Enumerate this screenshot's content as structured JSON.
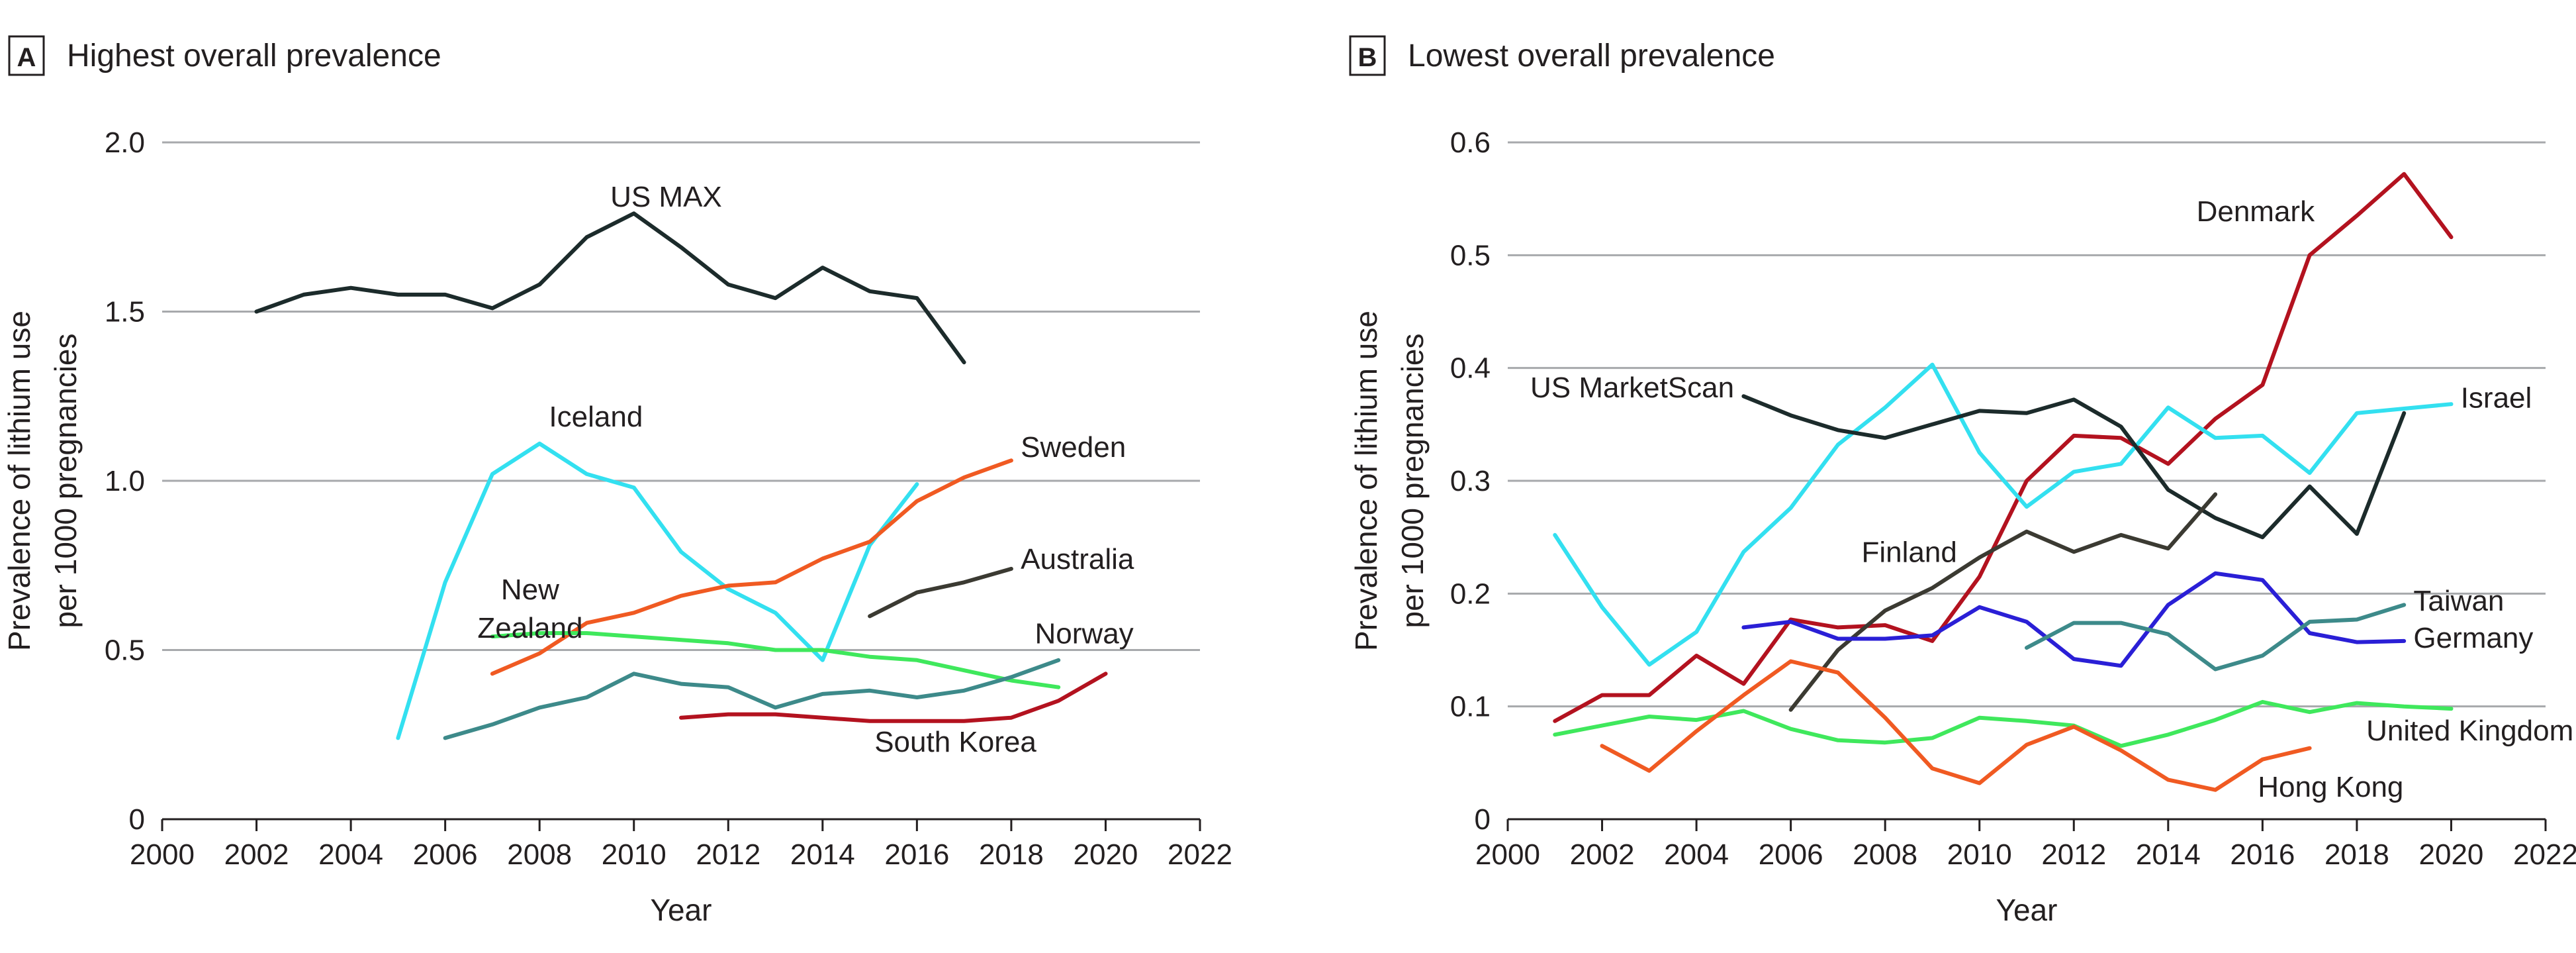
{
  "chart_data": [
    {
      "type": "line",
      "panel_letter": "A",
      "title": "Highest overall prevalence",
      "xlabel": "Year",
      "ylabel_lines": [
        "Prevalence of lithium use",
        "per 1000 pregnancies"
      ],
      "xlim": [
        2000,
        2022
      ],
      "ylim": [
        0,
        2.0
      ],
      "xticks": [
        2000,
        2002,
        2004,
        2006,
        2008,
        2010,
        2012,
        2014,
        2016,
        2018,
        2020,
        2022
      ],
      "yticks": [
        0,
        0.5,
        1.0,
        1.5,
        2.0
      ],
      "ytick_labels": [
        "0",
        "0.5",
        "1.0",
        "1.5",
        "2.0"
      ],
      "grid": "horizontal",
      "series": [
        {
          "name": "US MAX",
          "color": "#1c2b2b",
          "x": [
            2002,
            2003,
            2004,
            2005,
            2006,
            2007,
            2008,
            2009,
            2010,
            2011,
            2012,
            2013,
            2014,
            2015,
            2016,
            2017
          ],
          "y": [
            1.5,
            1.55,
            1.57,
            1.55,
            1.55,
            1.51,
            1.58,
            1.72,
            1.79,
            1.69,
            1.58,
            1.54,
            1.63,
            1.56,
            1.54,
            1.35
          ],
          "label_lines": [
            "US MAX"
          ],
          "label_at": [
            2009.5,
            1.81
          ],
          "label_align": "start"
        },
        {
          "name": "Iceland",
          "color": "#33e0f0",
          "x": [
            2005,
            2006,
            2007,
            2008,
            2009,
            2010,
            2011,
            2012,
            2013,
            2014,
            2015,
            2016
          ],
          "y": [
            0.24,
            0.7,
            1.02,
            1.11,
            1.02,
            0.98,
            0.79,
            0.68,
            0.61,
            0.47,
            0.81,
            0.99
          ],
          "label_lines": [
            "Iceland"
          ],
          "label_at": [
            2008.2,
            1.16
          ],
          "label_align": "start"
        },
        {
          "name": "Sweden",
          "color": "#f05a22",
          "x": [
            2007,
            2008,
            2009,
            2010,
            2011,
            2012,
            2013,
            2014,
            2015,
            2016,
            2017,
            2018
          ],
          "y": [
            0.43,
            0.49,
            0.58,
            0.61,
            0.66,
            0.69,
            0.7,
            0.77,
            0.82,
            0.94,
            1.01,
            1.06
          ],
          "label_lines": [
            "Sweden"
          ],
          "label_at": [
            2018.2,
            1.07
          ],
          "label_align": "start"
        },
        {
          "name": "Australia",
          "color": "#3b3a32",
          "x": [
            2015,
            2016,
            2017,
            2018
          ],
          "y": [
            0.6,
            0.67,
            0.7,
            0.74
          ],
          "label_lines": [
            "Australia"
          ],
          "label_at": [
            2018.2,
            0.74
          ],
          "label_align": "start"
        },
        {
          "name": "New Zealand",
          "color": "#3fe85c",
          "x": [
            2007,
            2008,
            2009,
            2010,
            2011,
            2012,
            2013,
            2014,
            2015,
            2016,
            2017,
            2018,
            2019
          ],
          "y": [
            0.54,
            0.55,
            0.55,
            0.54,
            0.53,
            0.52,
            0.5,
            0.5,
            0.48,
            0.47,
            0.44,
            0.41,
            0.39
          ],
          "label_lines": [
            "New",
            "Zealand"
          ],
          "label_at": [
            2007.8,
            0.65
          ],
          "label_align": "middle"
        },
        {
          "name": "Norway",
          "color": "#3d8a8a",
          "x": [
            2006,
            2007,
            2008,
            2009,
            2010,
            2011,
            2012,
            2013,
            2014,
            2015,
            2016,
            2017,
            2018,
            2019
          ],
          "y": [
            0.24,
            0.28,
            0.33,
            0.36,
            0.43,
            0.4,
            0.39,
            0.33,
            0.37,
            0.38,
            0.36,
            0.38,
            0.42,
            0.47
          ],
          "label_lines": [
            "Norway"
          ],
          "label_at": [
            2018.5,
            0.52
          ],
          "label_align": "start"
        },
        {
          "name": "South Korea",
          "color": "#b3121f",
          "x": [
            2011,
            2012,
            2013,
            2014,
            2015,
            2016,
            2017,
            2018,
            2019,
            2020
          ],
          "y": [
            0.3,
            0.31,
            0.31,
            0.3,
            0.29,
            0.29,
            0.29,
            0.3,
            0.35,
            0.43
          ],
          "label_lines": [
            "South Korea"
          ],
          "label_at": [
            2015.1,
            0.2
          ],
          "label_align": "start"
        }
      ]
    },
    {
      "type": "line",
      "panel_letter": "B",
      "title": "Lowest overall prevalence",
      "xlabel": "Year",
      "ylabel_lines": [
        "Prevalence of lithium use",
        "per 1000 pregnancies"
      ],
      "xlim": [
        2000,
        2022
      ],
      "ylim": [
        0,
        0.6
      ],
      "xticks": [
        2000,
        2002,
        2004,
        2006,
        2008,
        2010,
        2012,
        2014,
        2016,
        2018,
        2020,
        2022
      ],
      "yticks": [
        0,
        0.1,
        0.2,
        0.3,
        0.4,
        0.5,
        0.6
      ],
      "ytick_labels": [
        "0",
        "0.1",
        "0.2",
        "0.3",
        "0.4",
        "0.5",
        "0.6"
      ],
      "grid": "horizontal",
      "series": [
        {
          "name": "Denmark",
          "color": "#b3121f",
          "x": [
            2001,
            2002,
            2003,
            2004,
            2005,
            2006,
            2007,
            2008,
            2009,
            2010,
            2011,
            2012,
            2013,
            2014,
            2015,
            2016,
            2017,
            2018,
            2019,
            2020
          ],
          "y": [
            0.087,
            0.11,
            0.11,
            0.145,
            0.12,
            0.177,
            0.17,
            0.172,
            0.158,
            0.215,
            0.3,
            0.34,
            0.338,
            0.315,
            0.355,
            0.385,
            0.5,
            0.535,
            0.572,
            0.516
          ],
          "label_lines": [
            "Denmark"
          ],
          "label_at": [
            2014.6,
            0.53
          ],
          "label_align": "start"
        },
        {
          "name": "Israel",
          "color": "#33e0f0",
          "x": [
            2001,
            2002,
            2003,
            2004,
            2005,
            2006,
            2007,
            2008,
            2009,
            2010,
            2011,
            2012,
            2013,
            2014,
            2015,
            2016,
            2017,
            2018,
            2019,
            2020
          ],
          "y": [
            0.252,
            0.188,
            0.137,
            0.166,
            0.237,
            0.276,
            0.332,
            0.365,
            0.403,
            0.325,
            0.277,
            0.308,
            0.315,
            0.365,
            0.338,
            0.34,
            0.307,
            0.36,
            0.364,
            0.368
          ],
          "label_lines": [
            "Israel"
          ],
          "label_at": [
            2020.2,
            0.365
          ],
          "label_align": "start"
        },
        {
          "name": "US MarketScan",
          "color": "#1c2b2b",
          "x": [
            2005,
            2006,
            2007,
            2008,
            2009,
            2010,
            2011,
            2012,
            2013,
            2014,
            2015,
            2016,
            2017,
            2018,
            2019
          ],
          "y": [
            0.375,
            0.358,
            0.345,
            0.338,
            0.35,
            0.362,
            0.36,
            0.372,
            0.348,
            0.292,
            0.267,
            0.25,
            0.295,
            0.253,
            0.36
          ],
          "label_lines": [
            "US MarketScan"
          ],
          "label_at": [
            2004.8,
            0.374
          ],
          "label_align": "end"
        },
        {
          "name": "Finland",
          "color": "#3b3a32",
          "x": [
            2006,
            2007,
            2008,
            2009,
            2010,
            2011,
            2012,
            2013,
            2014,
            2015
          ],
          "y": [
            0.097,
            0.15,
            0.185,
            0.205,
            0.232,
            0.255,
            0.237,
            0.252,
            0.24,
            0.288
          ],
          "label_lines": [
            "Finland"
          ],
          "label_at": [
            2007.5,
            0.228
          ],
          "label_align": "start"
        },
        {
          "name": "Germany",
          "color": "#2a1fd6",
          "x": [
            2005,
            2006,
            2007,
            2008,
            2009,
            2010,
            2011,
            2012,
            2013,
            2014,
            2015,
            2016,
            2017,
            2018,
            2019
          ],
          "y": [
            0.17,
            0.175,
            0.16,
            0.16,
            0.163,
            0.188,
            0.175,
            0.142,
            0.136,
            0.19,
            0.218,
            0.212,
            0.165,
            0.157,
            0.158
          ],
          "label_lines": [
            "Germany"
          ],
          "label_at": [
            2019.2,
            0.152
          ],
          "label_align": "start"
        },
        {
          "name": "Taiwan",
          "color": "#3d8a8a",
          "x": [
            2011,
            2012,
            2013,
            2014,
            2015,
            2016,
            2017,
            2018,
            2019
          ],
          "y": [
            0.152,
            0.174,
            0.174,
            0.164,
            0.133,
            0.145,
            0.175,
            0.177,
            0.19
          ],
          "label_lines": [
            "Taiwan"
          ],
          "label_at": [
            2019.2,
            0.185
          ],
          "label_align": "start"
        },
        {
          "name": "United Kingdom",
          "color": "#3fe85c",
          "x": [
            2001,
            2002,
            2003,
            2004,
            2005,
            2006,
            2007,
            2008,
            2009,
            2010,
            2011,
            2012,
            2013,
            2014,
            2015,
            2016,
            2017,
            2018,
            2019,
            2020
          ],
          "y": [
            0.075,
            0.083,
            0.091,
            0.088,
            0.096,
            0.08,
            0.07,
            0.068,
            0.072,
            0.09,
            0.087,
            0.083,
            0.065,
            0.075,
            0.088,
            0.104,
            0.095,
            0.103,
            0.1,
            0.098
          ],
          "label_lines": [
            "United Kingdom"
          ],
          "label_at": [
            2018.2,
            0.07
          ],
          "label_align": "start"
        },
        {
          "name": "Hong Kong",
          "color": "#f05a22",
          "x": [
            2002,
            2003,
            2004,
            2005,
            2006,
            2007,
            2008,
            2009,
            2010,
            2011,
            2012,
            2013,
            2014,
            2015,
            2016,
            2017
          ],
          "y": [
            0.065,
            0.043,
            0.078,
            0.11,
            0.14,
            0.13,
            0.09,
            0.045,
            0.032,
            0.066,
            0.082,
            0.061,
            0.035,
            0.026,
            0.053,
            0.063
          ],
          "label_lines": [
            "Hong Kong"
          ],
          "label_at": [
            2015.9,
            0.02
          ],
          "label_align": "start"
        }
      ]
    }
  ]
}
